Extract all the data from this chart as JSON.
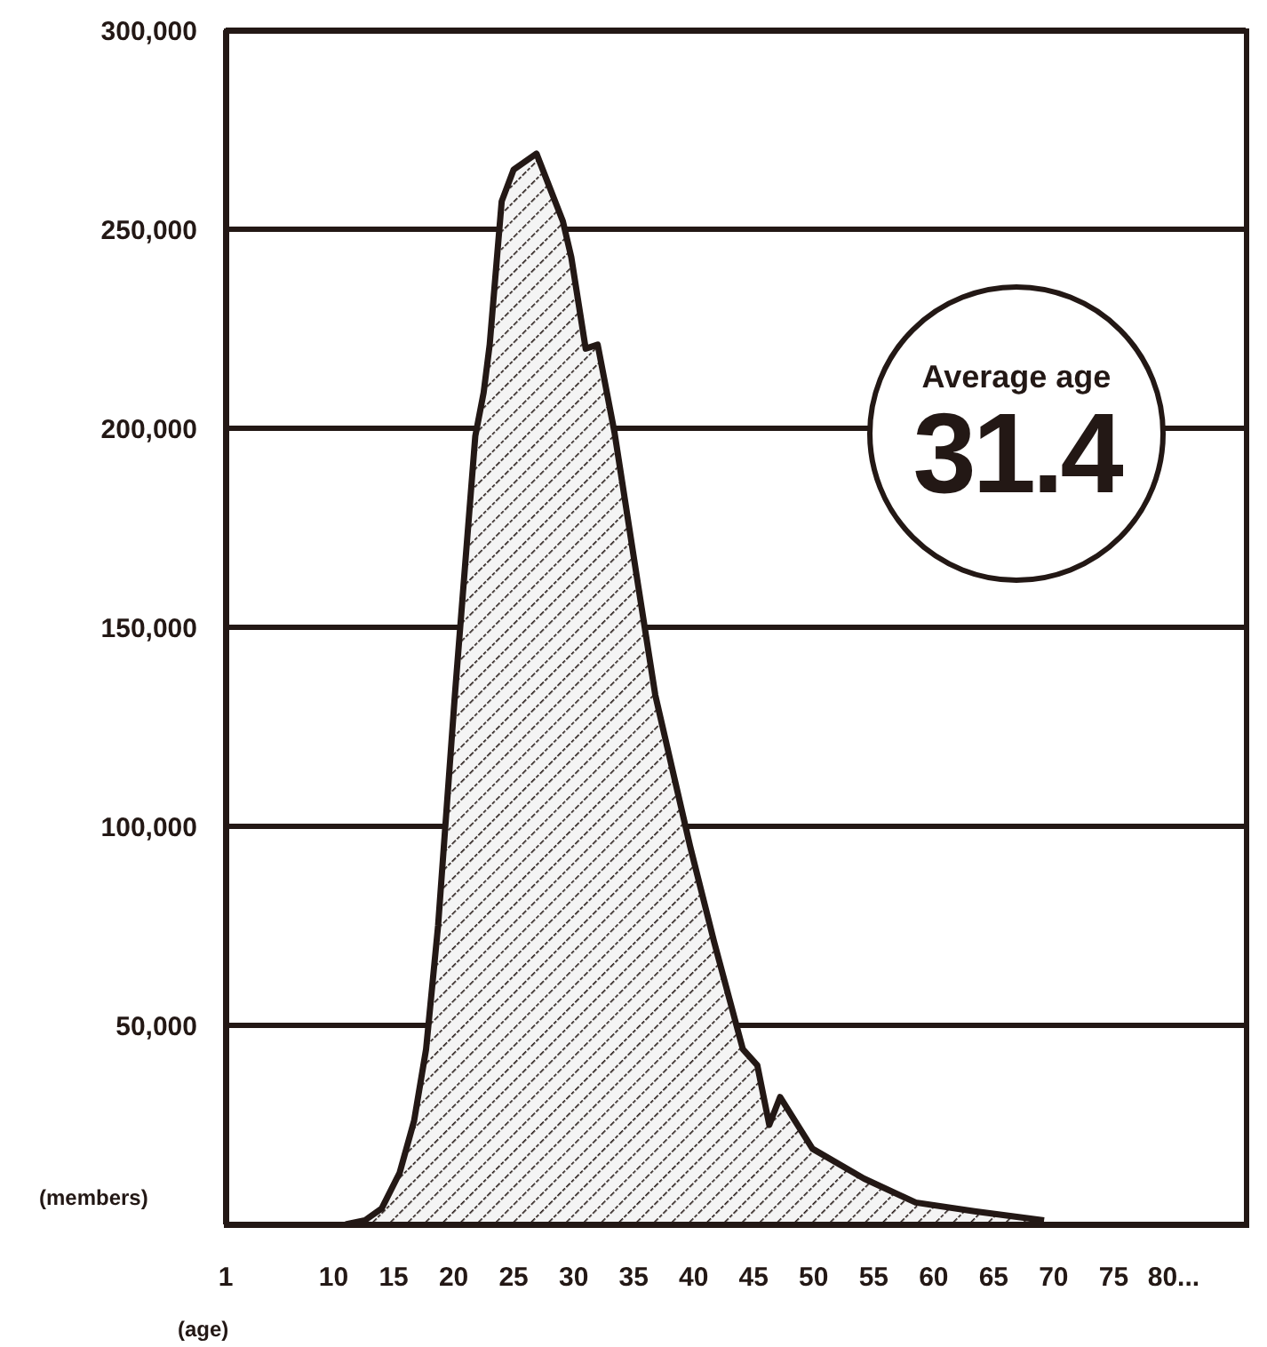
{
  "chart_data": {
    "type": "area",
    "xlabel": "(age)",
    "ylabel": "(members)",
    "annotations": [
      "Average age",
      "31.4"
    ],
    "x": [
      11,
      12.6,
      14,
      15.5,
      16.7,
      17.7,
      18.7,
      20.1,
      21.8,
      22.5,
      23,
      24,
      25,
      26.9,
      29.1,
      29.8,
      31,
      32,
      33.4,
      35.4,
      36.8,
      39.7,
      41.7,
      44.1,
      45.3,
      46.3,
      47.2,
      49.9,
      54.2,
      58.5,
      63.4,
      69.2
    ],
    "series": [
      {
        "color": "#231815",
        "values": [
          0,
          1000,
          4000,
          13000,
          26000,
          44000,
          75000,
          133000,
          198000,
          209000,
          221000,
          257000,
          265000,
          269000,
          252000,
          243000,
          220000,
          221000,
          199000,
          160000,
          133000,
          95000,
          71000,
          44000,
          40000,
          25000,
          32000,
          19000,
          11500,
          5500,
          3300,
          1000
        ]
      }
    ],
    "xlim": [
      1,
      86
    ],
    "xticks": [
      1,
      10,
      15,
      20,
      25,
      30,
      35,
      40,
      45,
      50,
      55,
      60,
      65,
      70,
      75,
      {
        "value": 80,
        "label": "80..."
      }
    ],
    "ylim": [
      0,
      300000
    ],
    "yticks": [
      {
        "value": 50000,
        "label": "50,000"
      },
      {
        "value": 100000,
        "label": "100,000"
      },
      {
        "value": 150000,
        "label": "150,000"
      },
      {
        "value": 200000,
        "label": "200,000"
      },
      {
        "value": 250000,
        "label": "250,000"
      },
      {
        "value": 300000,
        "label": "300,000"
      }
    ],
    "grid": "y"
  }
}
